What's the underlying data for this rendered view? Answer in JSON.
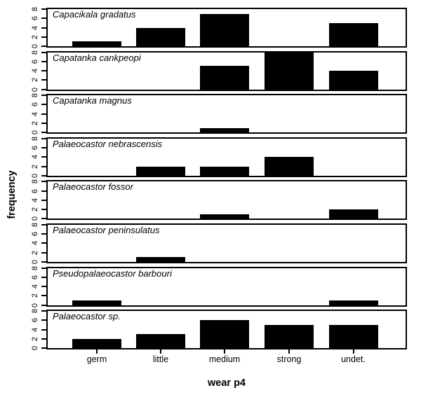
{
  "figure": {
    "background": "#ffffff",
    "frame_color": "#000000"
  },
  "chart_data": {
    "type": "bar",
    "title": "",
    "xlabel": "wear p4",
    "ylabel": "frequency",
    "categories": [
      "germ",
      "little",
      "medium",
      "strong",
      "undet."
    ],
    "yticks": [
      0,
      2,
      4,
      6,
      8
    ],
    "ylim": [
      0,
      8
    ],
    "bar_color": "#000000",
    "grid": "off",
    "layout": "8 vertically stacked species panels (small multiples) sharing one x axis; y tick labels rotated 90deg on every panel",
    "panels": [
      {
        "species": "Capacikala gradatus",
        "values": [
          1,
          4,
          7,
          0,
          5
        ]
      },
      {
        "species": "Capatanka cankpeopi",
        "values": [
          0,
          0,
          5,
          8,
          4
        ]
      },
      {
        "species": "Capatanka magnus",
        "values": [
          0,
          0,
          1,
          0,
          0
        ]
      },
      {
        "species": "Palaeocastor nebrascensis",
        "values": [
          0,
          2,
          2,
          4,
          0
        ]
      },
      {
        "species": "Palaeocastor fossor",
        "values": [
          0,
          0,
          1,
          0,
          2
        ]
      },
      {
        "species": "Palaeocastor peninsulatus",
        "values": [
          0,
          1,
          0,
          0,
          0
        ]
      },
      {
        "species": "Pseudopalaeocastor barbouri",
        "values": [
          1,
          0,
          0,
          0,
          1
        ]
      },
      {
        "species": "Palaeocastor sp.",
        "values": [
          2,
          3,
          6,
          5,
          5
        ]
      }
    ]
  }
}
